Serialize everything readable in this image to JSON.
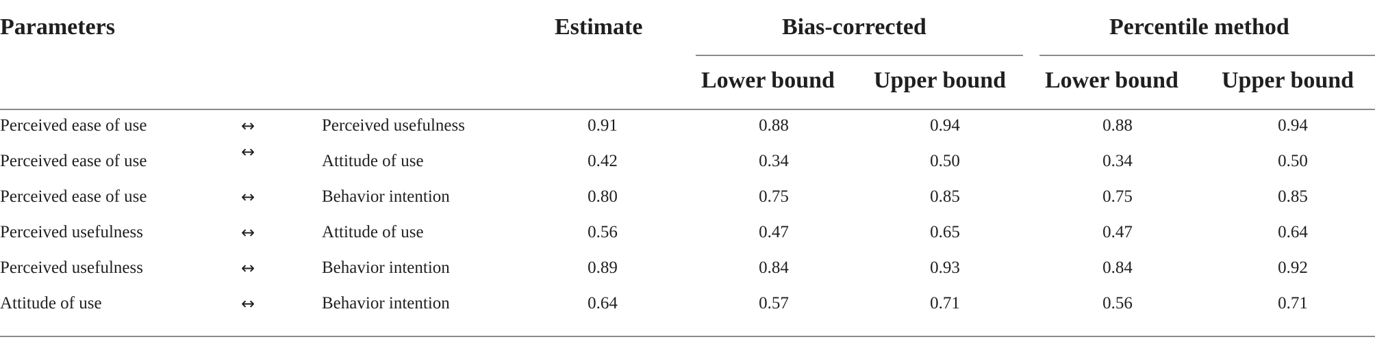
{
  "header": {
    "parameters": "Parameters",
    "estimate": "Estimate",
    "bias_corrected": "Bias-corrected",
    "percentile_method": "Percentile method",
    "lower_bound": "Lower bound",
    "upper_bound": "Upper bound"
  },
  "rows": [
    {
      "from": "Perceived ease of use",
      "arrow": "↔",
      "to": "Perceived usefulness",
      "estimate": "0.91",
      "bc_lower": "0.88",
      "bc_upper": "0.94",
      "pm_lower": "0.88",
      "pm_upper": "0.94"
    },
    {
      "from": "Perceived ease of use",
      "arrow": "↔",
      "to": "Attitude of use",
      "estimate": "0.42",
      "bc_lower": "0.34",
      "bc_upper": "0.50",
      "pm_lower": "0.34",
      "pm_upper": "0.50"
    },
    {
      "from": "Perceived ease of use",
      "arrow": "↔",
      "to": "Behavior intention",
      "estimate": "0.80",
      "bc_lower": "0.75",
      "bc_upper": "0.85",
      "pm_lower": "0.75",
      "pm_upper": "0.85"
    },
    {
      "from": "Perceived usefulness",
      "arrow": "↔",
      "to": "Attitude of use",
      "estimate": "0.56",
      "bc_lower": "0.47",
      "bc_upper": "0.65",
      "pm_lower": "0.47",
      "pm_upper": "0.64"
    },
    {
      "from": "Perceived usefulness",
      "arrow": "↔",
      "to": "Behavior intention",
      "estimate": "0.89",
      "bc_lower": "0.84",
      "bc_upper": "0.93",
      "pm_lower": "0.84",
      "pm_upper": "0.92"
    },
    {
      "from": "Attitude of use",
      "arrow": "↔",
      "to": "Behavior intention",
      "estimate": "0.64",
      "bc_lower": "0.57",
      "bc_upper": "0.71",
      "pm_lower": "0.56",
      "pm_upper": "0.71"
    }
  ]
}
